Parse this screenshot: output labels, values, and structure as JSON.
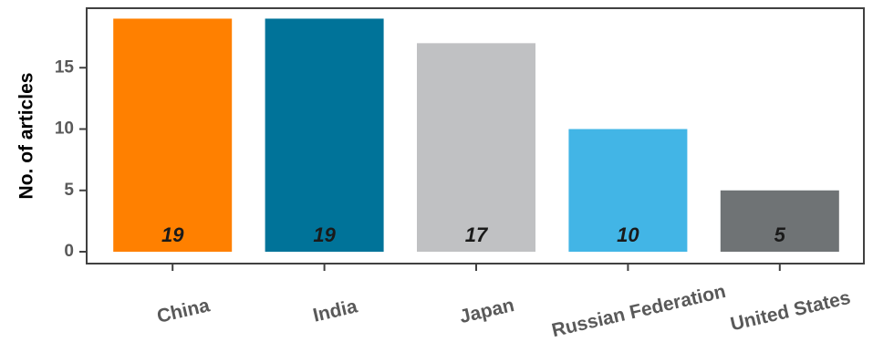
{
  "chart_data": {
    "type": "bar",
    "categories": [
      "China",
      "India",
      "Japan",
      "Russian Federation",
      "United States"
    ],
    "values": [
      19,
      19,
      17,
      10,
      5
    ],
    "colors": [
      "#ff8000",
      "#007399",
      "#c0c1c3",
      "#42b5e6",
      "#6f7375"
    ],
    "title": "",
    "xlabel": "",
    "ylabel": "No. of articles",
    "ylim": [
      0,
      19.5
    ],
    "yticks": [
      0,
      5,
      10,
      15
    ],
    "grid": false,
    "legend": "none"
  }
}
